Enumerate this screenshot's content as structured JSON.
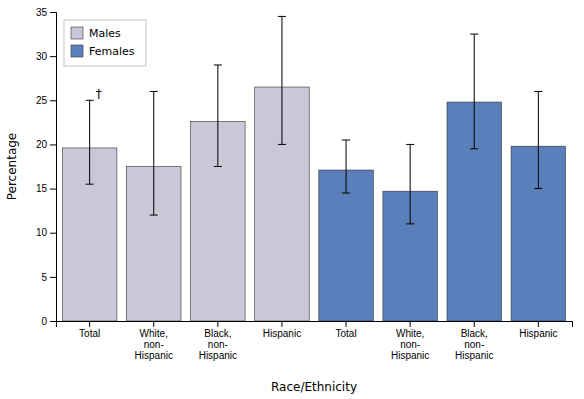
{
  "chart_data": {
    "type": "bar",
    "categories": [
      "Total",
      "White,\nnon-\nHispanic",
      "Black,\nnon-\nHispanic",
      "Hispanic",
      "Total",
      "White,\nnon-\nHispanic",
      "Black,\nnon-\nHispanic",
      "Hispanic"
    ],
    "series": [
      {
        "name": "Males",
        "color": "#c8c8d8",
        "values": [
          19.6,
          17.5,
          22.6,
          26.5,
          null,
          null,
          null,
          null
        ],
        "ci_low": [
          15.5,
          12.0,
          17.5,
          20.0,
          null,
          null,
          null,
          null
        ],
        "ci_high": [
          25.0,
          26.0,
          29.0,
          34.5,
          null,
          null,
          null,
          null
        ]
      },
      {
        "name": "Females",
        "color": "#5b7fba",
        "values": [
          null,
          null,
          null,
          null,
          17.1,
          14.7,
          24.8,
          19.8
        ],
        "ci_low": [
          null,
          null,
          null,
          null,
          14.5,
          11.0,
          19.5,
          15.0
        ],
        "ci_high": [
          null,
          null,
          null,
          null,
          20.5,
          20.0,
          32.5,
          26.0
        ]
      }
    ],
    "xlabel": "Race/Ethnicity",
    "ylabel": "Percentage",
    "ylim": [
      0,
      35
    ],
    "yticks": [
      0,
      5,
      10,
      15,
      20,
      25,
      30,
      35
    ],
    "annotations": [
      {
        "text": "†",
        "y": 25.3
      }
    ],
    "legend": "upper left",
    "grid": false
  }
}
